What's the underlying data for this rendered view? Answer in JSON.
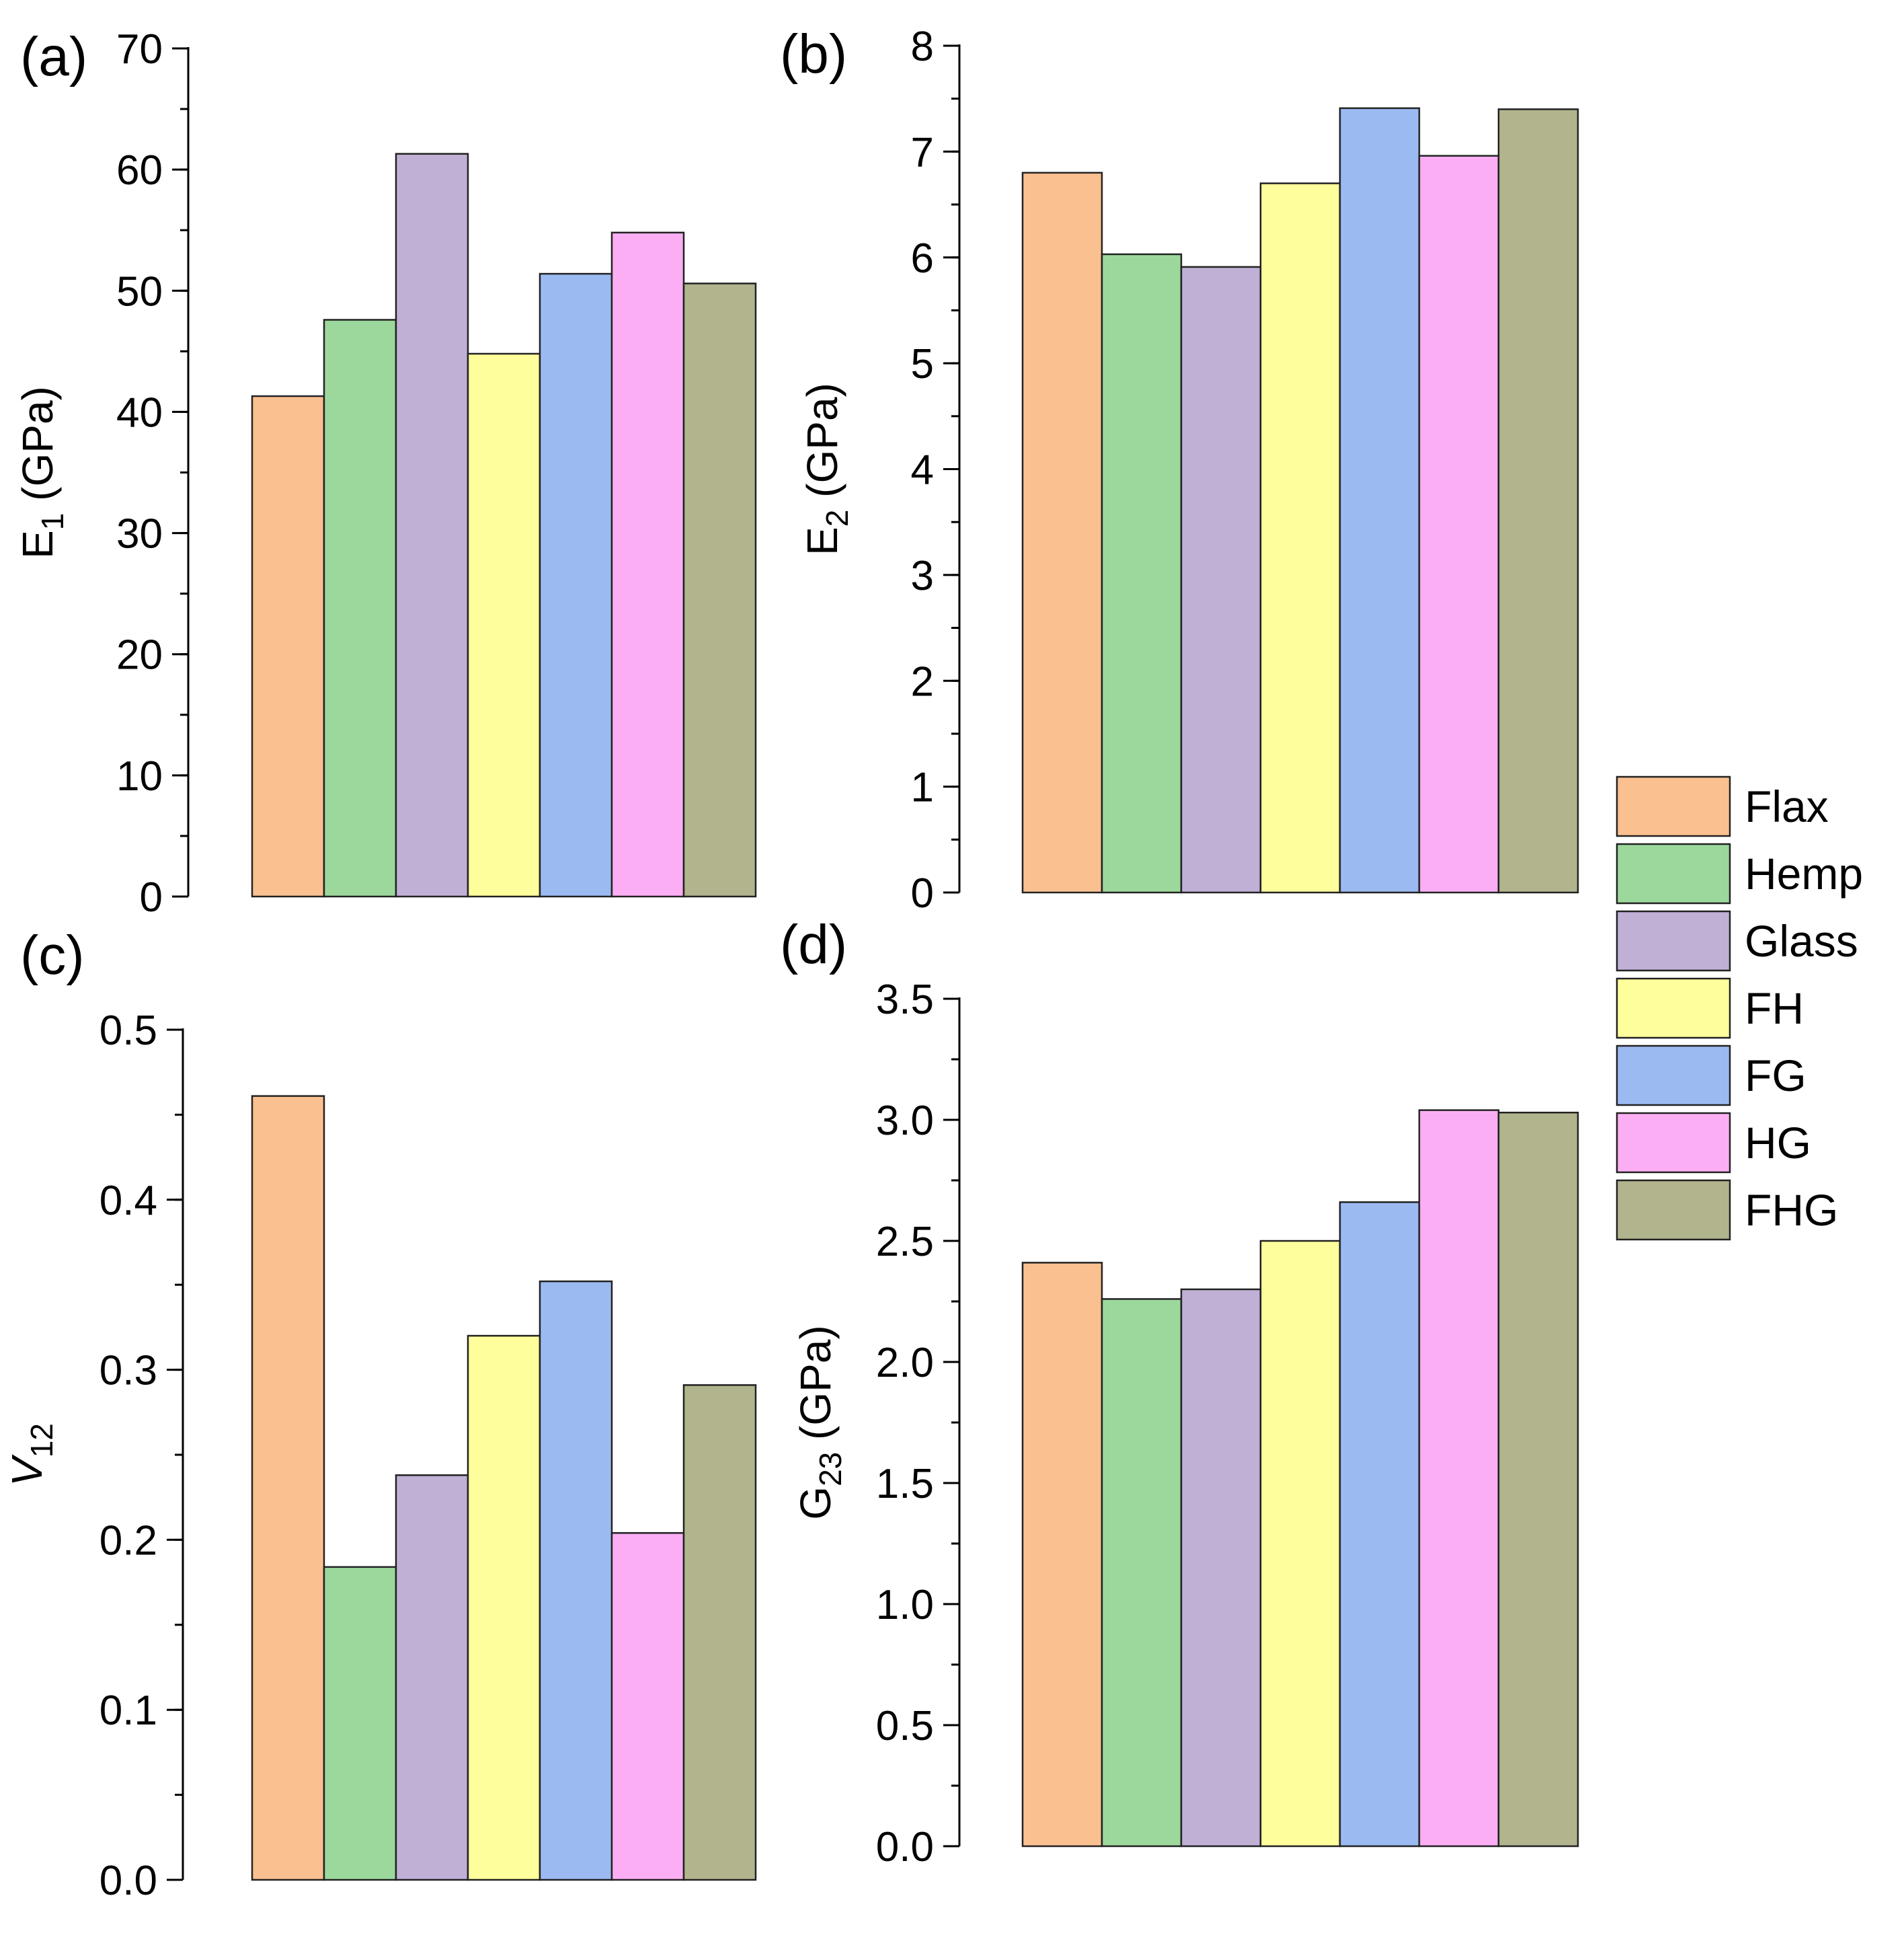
{
  "figure": {
    "legend_placement": "right",
    "legend": [
      {
        "name": "Flax",
        "color": "#FAC090"
      },
      {
        "name": "Hemp",
        "color": "#9CD89C"
      },
      {
        "name": "Glass",
        "color": "#C0B0D6"
      },
      {
        "name": "FH",
        "color": "#FEFE9C"
      },
      {
        "name": "FG",
        "color": "#9CBAF2"
      },
      {
        "name": "HG",
        "color": "#FCAEF4"
      },
      {
        "name": "FHG",
        "color": "#B2B48E"
      }
    ]
  },
  "chart_data": [
    {
      "type": "bar",
      "panel": "(a)",
      "ylabel": {
        "main": "E",
        "sub": "1",
        "unit": " (GPa)",
        "italic": false
      },
      "categories": [
        "Flax",
        "Hemp",
        "Glass",
        "FH",
        "FG",
        "HG",
        "FHG"
      ],
      "values": [
        41.3,
        47.6,
        61.3,
        44.8,
        51.4,
        54.8,
        50.6
      ],
      "ylim": [
        0,
        70
      ],
      "yticks": [
        0,
        10,
        20,
        30,
        40,
        50,
        60,
        70
      ],
      "ytick_labels": [
        "0",
        "10",
        "20",
        "30",
        "40",
        "50",
        "60",
        "70"
      ],
      "minor_step": 5,
      "grid": false,
      "xticks_shown": false
    },
    {
      "type": "bar",
      "panel": "(b)",
      "ylabel": {
        "main": "E",
        "sub": "2",
        "unit": " (GPa)",
        "italic": false
      },
      "categories": [
        "Flax",
        "Hemp",
        "Glass",
        "FH",
        "FG",
        "HG",
        "FHG"
      ],
      "values": [
        6.8,
        6.03,
        5.91,
        6.7,
        7.41,
        6.96,
        7.4
      ],
      "ylim": [
        0,
        8
      ],
      "yticks": [
        0,
        1,
        2,
        3,
        4,
        5,
        6,
        7,
        8
      ],
      "ytick_labels": [
        "0",
        "1",
        "2",
        "3",
        "4",
        "5",
        "6",
        "7",
        "8"
      ],
      "minor_step": 0.5,
      "grid": false,
      "xticks_shown": false
    },
    {
      "type": "bar",
      "panel": "(c)",
      "ylabel": {
        "main": "V",
        "sub": "12",
        "unit": "",
        "italic": true
      },
      "categories": [
        "Flax",
        "Hemp",
        "Glass",
        "FH",
        "FG",
        "HG",
        "FHG"
      ],
      "values": [
        0.461,
        0.184,
        0.238,
        0.32,
        0.352,
        0.204,
        0.291
      ],
      "ylim": [
        0,
        0.5
      ],
      "yticks": [
        0,
        0.1,
        0.2,
        0.3,
        0.4,
        0.5
      ],
      "ytick_labels": [
        "0.0",
        "0.1",
        "0.2",
        "0.3",
        "0.4",
        "0.5"
      ],
      "minor_step": 0.05,
      "grid": false,
      "xticks_shown": false
    },
    {
      "type": "bar",
      "panel": "(d)",
      "ylabel": {
        "main": "G",
        "sub": "23",
        "unit": " (GPa)",
        "italic": false
      },
      "categories": [
        "Flax",
        "Hemp",
        "Glass",
        "FH",
        "FG",
        "HG",
        "FHG"
      ],
      "values": [
        2.41,
        2.26,
        2.3,
        2.5,
        2.66,
        3.04,
        3.03
      ],
      "ylim": [
        0,
        3.5
      ],
      "yticks": [
        0,
        0.5,
        1.0,
        1.5,
        2.0,
        2.5,
        3.0,
        3.5
      ],
      "ytick_labels": [
        "0.0",
        "0.5",
        "1.0",
        "1.5",
        "2.0",
        "2.5",
        "3.0",
        "3.5"
      ],
      "minor_step": 0.25,
      "grid": false,
      "xticks_shown": false
    }
  ]
}
